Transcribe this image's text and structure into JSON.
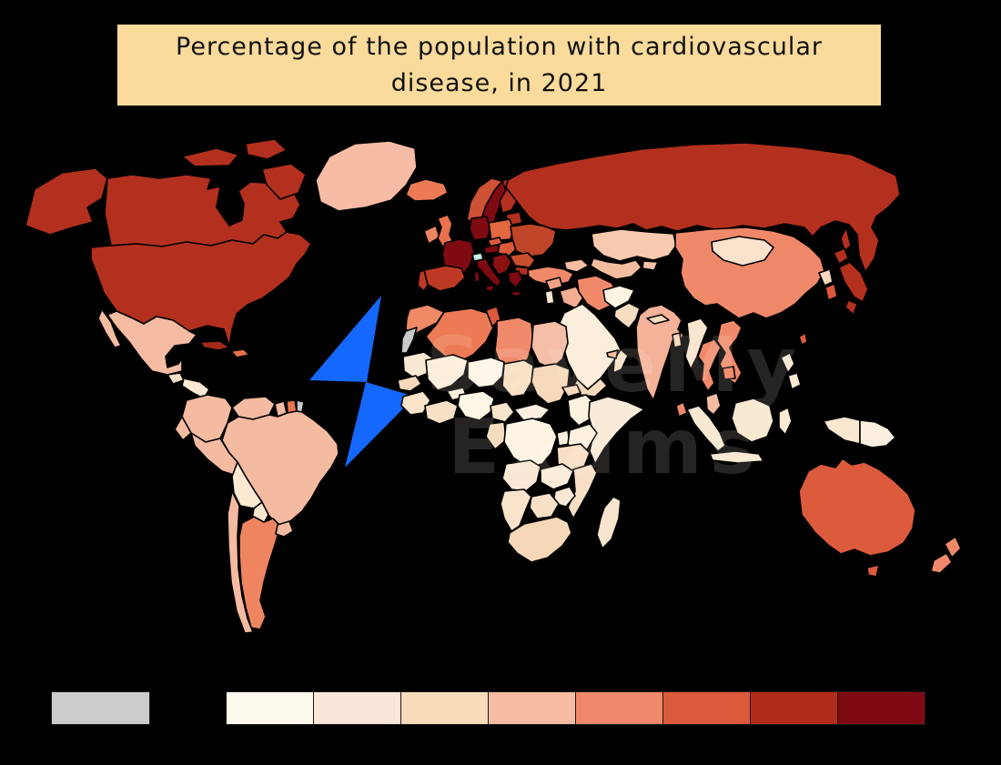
{
  "title": {
    "text": "Percentage of the population with cardiovascular disease, in 2021"
  },
  "watermark": {
    "line1": "SaveMy",
    "line2": "Exams",
    "bolt_color": "#1568FE"
  },
  "chart_data": {
    "type": "choropleth",
    "title": "Percentage of the population with cardiovascular disease, in 2021",
    "legend_position": "bottom",
    "palette": {
      "no_data": "#CCCCCC",
      "scale": [
        "#FEF9EE",
        "#FAE7DA",
        "#F8DCBA",
        "#F6BCA1",
        "#F0896A",
        "#DB5A3C",
        "#B22C1B",
        "#7D0912"
      ]
    },
    "highlight": {
      "country": "switzerland",
      "color": "#CBF2E2"
    },
    "ocean_color": "#000000",
    "border_color": "#000000",
    "countries": {
      "alaska": "#B3301E",
      "canada": "#B3301E",
      "arctic-islands": "#B3301E",
      "usa": "#B3301E",
      "greenland": "#F6BCA4",
      "iceland": "#EC7B55",
      "mexico": "#F6BCA1",
      "baja": "#F6BCA1",
      "guatemala": "#F8DFC6",
      "honduras-nicaragua": "#FBE9D2",
      "costa-rica-panama": "#EF8E6E",
      "cuba": "#A52A18",
      "hispaniola": "#E8714B",
      "colombia": "#F5BBA0",
      "venezuela": "#F5BBA0",
      "guyana": "#F5BBA0",
      "suriname": "#E8764E",
      "french-guiana": "#C9C9C9",
      "ecuador": "#F5BBA0",
      "peru": "#F5BBA0",
      "brazil": "#F5BBA0",
      "bolivia": "#FBE9D2",
      "paraguay": "#FAE4CE",
      "chile": "#F5BBA0",
      "argentina": "#EF8560",
      "uruguay": "#F5BBA0",
      "ireland": "#EF8560",
      "uk": "#E8714B",
      "norway": "#CE5136",
      "sweden": "#7E0A12",
      "finland": "#B3301E",
      "denmark": "#DB5A3C",
      "baltics": "#B3301E",
      "belarus": "#B3301E",
      "poland": "#E2683F",
      "germany": "#7E0A12",
      "france": "#7E0A12",
      "switzerland": "#CBF2E2",
      "austria": "#7E0A12",
      "czechia": "#DB5A3C",
      "slovakia-hungary": "#DB5A3C",
      "ukraine": "#C04428",
      "romania": "#C94F2E",
      "bulgaria": "#B3301E",
      "balkans": "#8A1110",
      "greece": "#7E0A12",
      "italy": "#7E0A12",
      "spain": "#BE3923",
      "portugal": "#BE3923",
      "turkey": "#F0896A",
      "caucasus": "#F6BCA1",
      "russia": "#B3301E",
      "sakhalin": "#B3301E",
      "kazakhstan": "#F7C9AE",
      "uzbekistan-turkmenistan": "#F5BDA0",
      "kyrgyzstan-tajikistan": "#F6C2A6",
      "mongolia": "#FAE2CC",
      "china": "#F0896A",
      "north-korea": "#F8D8C0",
      "south-korea": "#DB5A3C",
      "japan": "#B2301C",
      "taiwan": "#DB5A3C",
      "afghanistan": "#FDF4E2",
      "pakistan": "#F8DCC0",
      "india": "#F5B298",
      "nepal": "#F8DCBE",
      "bangladesh": "#F7D7B8",
      "sri-lanka": "#F0896A",
      "myanmar": "#FAE5CE",
      "thailand": "#F0896A",
      "vietnam-laos": "#F0896A",
      "cambodia": "#EE7F5D",
      "malaysia": "#F6BCA1",
      "sumatra": "#FAE9D2",
      "java": "#FAE9D2",
      "borneo": "#FAE9D2",
      "sulawesi": "#FAE9D2",
      "philippines": "#FBE9D4",
      "west-new-guinea": "#FAE7D0",
      "papua-new-guinea": "#FBEFE0",
      "iran": "#F0896A",
      "iraq": "#F3AE92",
      "syria": "#F2A487",
      "levant": "#FAE6CE",
      "saudi-arabia": "#FBEEDA",
      "yemen": "#F6D9BA",
      "oman": "#F9E2C8",
      "uae": "#F5BCA1",
      "morocco": "#EE8A66",
      "western-sahara": "#C9C9C9",
      "algeria": "#EC7B55",
      "tunisia": "#DB5A3C",
      "libya": "#F0896A",
      "egypt": "#F5BEA6",
      "mauritania": "#F9E8D2",
      "mali": "#FBEFDC",
      "niger": "#FDF6E8",
      "chad": "#F8E0C4",
      "sudan": "#F6D9BA",
      "eritrea": "#F6D9BA",
      "ethiopia": "#FCF2E0",
      "somalia": "#FAEBD8",
      "senegal": "#F6D9BA",
      "guinea": "#F9E4CA",
      "ivory-ghana": "#F8E0C6",
      "burkina": "#FBEFDC",
      "nigeria": "#FDF5E5",
      "cameroon": "#F9E4CC",
      "central-african-republic": "#FBEFE0",
      "gabon-congo": "#F6DCBE",
      "drc": "#FDF4E4",
      "uganda": "#FCF0DE",
      "kenya": "#FCF0DE",
      "tanzania": "#F8DFC6",
      "angola": "#FAE8D4",
      "zambia": "#FBEDDA",
      "mozambique": "#F8E0C6",
      "zimbabwe": "#FAE8D4",
      "botswana": "#F8E0C6",
      "namibia": "#F9E3CA",
      "south-africa": "#F6D8B8",
      "madagascar": "#F9E5CE",
      "australia": "#DC5B3C",
      "tasmania": "#DC5B3C",
      "new-zealand": "#F0896A"
    }
  }
}
